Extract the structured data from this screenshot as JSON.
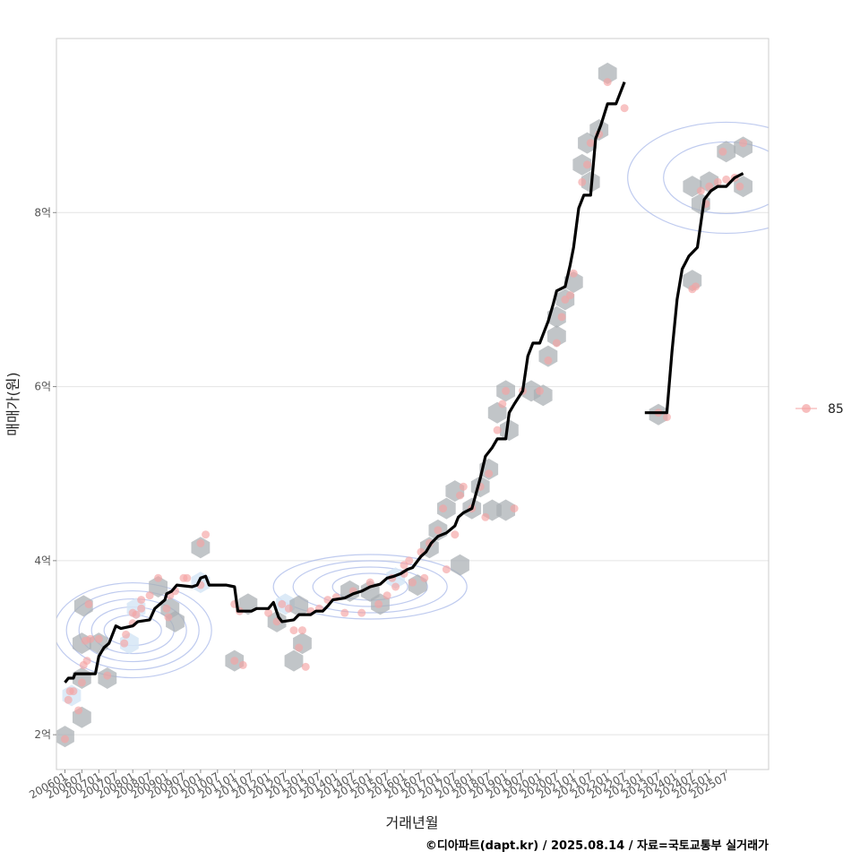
{
  "chart_data": {
    "type": "scatter",
    "xlabel": "거래년월",
    "ylabel": "매매가(원)",
    "caption": "©디아파트(dapt.kr) / 2025.08.14 / 자료=국토교통부 실거래가",
    "x_ticks": [
      "200601",
      "200607",
      "200701",
      "200707",
      "200801",
      "200807",
      "200901",
      "200907",
      "201001",
      "201007",
      "201101",
      "201107",
      "201201",
      "201207",
      "201301",
      "201307",
      "201401",
      "201407",
      "201501",
      "201507",
      "201601",
      "201607",
      "201701",
      "201707",
      "201801",
      "201807",
      "201901",
      "201907",
      "202001",
      "202007",
      "202101",
      "202107",
      "202201",
      "202207",
      "202301",
      "202307",
      "202401",
      "202407",
      "202501",
      "202507"
    ],
    "y_ticks": [
      {
        "value": 2,
        "label": "2억"
      },
      {
        "value": 4,
        "label": "4억"
      },
      {
        "value": 6,
        "label": "6억"
      },
      {
        "value": 8,
        "label": "8억"
      }
    ],
    "xlim": [
      -0.5,
      41.5
    ],
    "ylim": [
      1.6,
      10.0
    ],
    "legend": {
      "position": "right",
      "entries": [
        {
          "label": "85",
          "color": "#f4a3a3"
        }
      ]
    },
    "colors": {
      "trend": "#000000",
      "points": "#f4a3a3",
      "hex_dark": "#a9aeb3",
      "hex_light": "#d6e6f6",
      "contour": "#a9baea",
      "grid": "#e4e4e4",
      "frame": "#cccccc"
    },
    "points": [
      [
        0.0,
        1.95
      ],
      [
        0.2,
        2.4
      ],
      [
        0.3,
        2.5
      ],
      [
        0.5,
        2.5
      ],
      [
        0.8,
        2.28
      ],
      [
        1.0,
        2.6
      ],
      [
        1.1,
        2.8
      ],
      [
        1.3,
        2.85
      ],
      [
        1.2,
        3.08
      ],
      [
        1.5,
        3.1
      ],
      [
        1.4,
        3.5
      ],
      [
        2.0,
        3.1
      ],
      [
        2.5,
        2.68
      ],
      [
        3.5,
        3.05
      ],
      [
        3.6,
        3.15
      ],
      [
        4.0,
        3.28
      ],
      [
        4.0,
        3.4
      ],
      [
        4.2,
        3.38
      ],
      [
        4.5,
        3.45
      ],
      [
        4.5,
        3.55
      ],
      [
        5.0,
        3.6
      ],
      [
        5.5,
        3.8
      ],
      [
        6.0,
        3.45
      ],
      [
        6.1,
        3.35
      ],
      [
        6.2,
        3.6
      ],
      [
        6.5,
        3.65
      ],
      [
        7.0,
        3.8
      ],
      [
        7.2,
        3.8
      ],
      [
        8.0,
        3.72
      ],
      [
        8.0,
        4.2
      ],
      [
        8.3,
        4.3
      ],
      [
        10.0,
        3.5
      ],
      [
        10.3,
        3.42
      ],
      [
        10.0,
        2.85
      ],
      [
        10.5,
        2.8
      ],
      [
        12.0,
        3.4
      ],
      [
        12.5,
        3.3
      ],
      [
        12.8,
        3.5
      ],
      [
        13.2,
        3.45
      ],
      [
        13.5,
        3.2
      ],
      [
        13.8,
        3.0
      ],
      [
        14.0,
        3.2
      ],
      [
        14.2,
        2.78
      ],
      [
        14.5,
        3.42
      ],
      [
        15.0,
        3.45
      ],
      [
        15.5,
        3.55
      ],
      [
        16.0,
        3.58
      ],
      [
        16.5,
        3.4
      ],
      [
        17.0,
        3.65
      ],
      [
        17.5,
        3.4
      ],
      [
        18.0,
        3.75
      ],
      [
        18.5,
        3.5
      ],
      [
        19.0,
        3.6
      ],
      [
        19.3,
        3.8
      ],
      [
        19.5,
        3.7
      ],
      [
        20.0,
        3.85
      ],
      [
        20.0,
        3.95
      ],
      [
        20.3,
        4.0
      ],
      [
        20.5,
        3.75
      ],
      [
        21.0,
        4.1
      ],
      [
        21.2,
        3.8
      ],
      [
        21.5,
        4.2
      ],
      [
        22.0,
        4.35
      ],
      [
        22.3,
        4.6
      ],
      [
        22.5,
        3.9
      ],
      [
        23.0,
        4.3
      ],
      [
        23.3,
        4.75
      ],
      [
        23.5,
        4.85
      ],
      [
        24.0,
        4.6
      ],
      [
        24.5,
        4.85
      ],
      [
        24.8,
        4.5
      ],
      [
        25.0,
        5.0
      ],
      [
        25.5,
        5.5
      ],
      [
        25.8,
        5.8
      ],
      [
        26.0,
        5.95
      ],
      [
        26.5,
        4.6
      ],
      [
        27.0,
        5.95
      ],
      [
        28.0,
        5.95
      ],
      [
        28.5,
        6.3
      ],
      [
        29.0,
        6.5
      ],
      [
        29.3,
        6.8
      ],
      [
        29.5,
        7.0
      ],
      [
        30.0,
        7.3
      ],
      [
        29.8,
        7.05
      ],
      [
        30.5,
        8.35
      ],
      [
        30.8,
        8.55
      ],
      [
        31.0,
        8.8
      ],
      [
        31.5,
        8.9
      ],
      [
        32.0,
        9.5
      ],
      [
        33.0,
        9.2
      ],
      [
        35.0,
        5.7
      ],
      [
        35.5,
        5.65
      ],
      [
        37.0,
        7.12
      ],
      [
        37.2,
        7.15
      ],
      [
        37.5,
        8.25
      ],
      [
        37.8,
        8.1
      ],
      [
        38.0,
        8.3
      ],
      [
        38.5,
        8.35
      ],
      [
        38.8,
        8.7
      ],
      [
        39.0,
        8.38
      ],
      [
        39.5,
        8.4
      ],
      [
        39.8,
        8.3
      ],
      [
        40.0,
        8.8
      ]
    ],
    "hexbins": [
      [
        0.0,
        1.98,
        "d"
      ],
      [
        0.4,
        2.45,
        "l"
      ],
      [
        1.0,
        2.2,
        "d"
      ],
      [
        1.0,
        2.65,
        "d"
      ],
      [
        1.0,
        3.05,
        "d"
      ],
      [
        1.1,
        3.48,
        "d"
      ],
      [
        2.0,
        3.05,
        "d"
      ],
      [
        2.5,
        2.65,
        "d"
      ],
      [
        3.8,
        3.05,
        "l"
      ],
      [
        4.2,
        3.45,
        "l"
      ],
      [
        5.5,
        3.7,
        "d"
      ],
      [
        6.2,
        3.45,
        "d"
      ],
      [
        6.5,
        3.3,
        "d"
      ],
      [
        8.0,
        4.15,
        "d"
      ],
      [
        8.0,
        3.75,
        "l"
      ],
      [
        10.0,
        2.85,
        "d"
      ],
      [
        10.8,
        3.5,
        "d"
      ],
      [
        12.5,
        3.3,
        "d"
      ],
      [
        13.0,
        3.5,
        "l"
      ],
      [
        13.8,
        3.48,
        "d"
      ],
      [
        13.5,
        2.85,
        "d"
      ],
      [
        14.0,
        3.05,
        "d"
      ],
      [
        16.8,
        3.65,
        "d"
      ],
      [
        18.0,
        3.65,
        "d"
      ],
      [
        18.6,
        3.5,
        "d"
      ],
      [
        19.5,
        3.8,
        "l"
      ],
      [
        20.8,
        3.72,
        "d"
      ],
      [
        21.5,
        4.15,
        "d"
      ],
      [
        22.0,
        4.35,
        "d"
      ],
      [
        22.5,
        4.6,
        "d"
      ],
      [
        23.0,
        4.8,
        "d"
      ],
      [
        23.3,
        3.95,
        "d"
      ],
      [
        24.0,
        4.6,
        "d"
      ],
      [
        24.5,
        4.85,
        "d"
      ],
      [
        25.0,
        5.05,
        "d"
      ],
      [
        25.2,
        4.58,
        "d"
      ],
      [
        26.0,
        4.58,
        "d"
      ],
      [
        25.5,
        5.7,
        "d"
      ],
      [
        26.0,
        5.95,
        "d"
      ],
      [
        26.2,
        5.5,
        "d"
      ],
      [
        27.5,
        5.95,
        "d"
      ],
      [
        28.2,
        5.9,
        "d"
      ],
      [
        28.5,
        6.35,
        "d"
      ],
      [
        29.0,
        6.58,
        "d"
      ],
      [
        29.0,
        6.8,
        "d"
      ],
      [
        29.5,
        7.0,
        "d"
      ],
      [
        30.0,
        7.2,
        "d"
      ],
      [
        30.5,
        8.55,
        "d"
      ],
      [
        31.0,
        8.35,
        "d"
      ],
      [
        30.8,
        8.8,
        "d"
      ],
      [
        31.5,
        8.95,
        "d"
      ],
      [
        32.0,
        9.6,
        "d"
      ],
      [
        35.0,
        5.68,
        "d"
      ],
      [
        37.0,
        7.22,
        "d"
      ],
      [
        37.0,
        8.3,
        "d"
      ],
      [
        37.5,
        8.1,
        "d"
      ],
      [
        38.0,
        8.35,
        "d"
      ],
      [
        39.0,
        8.7,
        "d"
      ],
      [
        40.0,
        8.75,
        "d"
      ],
      [
        40.0,
        8.3,
        "d"
      ]
    ],
    "trend_segments": [
      [
        [
          0.0,
          2.6
        ],
        [
          0.2,
          2.65
        ],
        [
          0.5,
          2.65
        ],
        [
          0.6,
          2.7
        ],
        [
          1.5,
          2.7
        ],
        [
          1.8,
          2.7
        ],
        [
          2.0,
          2.9
        ],
        [
          2.3,
          3.0
        ],
        [
          2.6,
          3.05
        ],
        [
          2.8,
          3.15
        ],
        [
          3.0,
          3.25
        ],
        [
          3.3,
          3.22
        ],
        [
          4.0,
          3.25
        ],
        [
          4.3,
          3.3
        ],
        [
          5.0,
          3.32
        ],
        [
          5.3,
          3.45
        ],
        [
          5.6,
          3.5
        ],
        [
          5.9,
          3.55
        ],
        [
          6.0,
          3.62
        ],
        [
          6.3,
          3.65
        ],
        [
          6.6,
          3.72
        ],
        [
          7.5,
          3.7
        ],
        [
          7.8,
          3.72
        ],
        [
          8.0,
          3.8
        ],
        [
          8.3,
          3.82
        ],
        [
          8.5,
          3.72
        ],
        [
          9.0,
          3.72
        ],
        [
          9.5,
          3.72
        ],
        [
          10.0,
          3.7
        ],
        [
          10.2,
          3.42
        ],
        [
          11.0,
          3.42
        ],
        [
          11.3,
          3.45
        ],
        [
          12.0,
          3.45
        ],
        [
          12.3,
          3.52
        ],
        [
          12.6,
          3.35
        ],
        [
          12.8,
          3.3
        ],
        [
          13.5,
          3.32
        ],
        [
          13.8,
          3.38
        ],
        [
          14.5,
          3.38
        ],
        [
          14.8,
          3.42
        ],
        [
          15.2,
          3.42
        ],
        [
          15.5,
          3.48
        ],
        [
          15.8,
          3.55
        ],
        [
          16.5,
          3.57
        ],
        [
          17.0,
          3.62
        ],
        [
          17.5,
          3.65
        ],
        [
          18.0,
          3.7
        ],
        [
          18.6,
          3.73
        ],
        [
          19.0,
          3.8
        ],
        [
          19.4,
          3.82
        ],
        [
          19.8,
          3.85
        ],
        [
          20.2,
          3.9
        ],
        [
          20.5,
          3.92
        ],
        [
          21.0,
          4.05
        ],
        [
          21.3,
          4.1
        ],
        [
          21.6,
          4.2
        ],
        [
          22.0,
          4.28
        ],
        [
          22.5,
          4.32
        ],
        [
          23.0,
          4.4
        ],
        [
          23.2,
          4.5
        ],
        [
          23.5,
          4.55
        ],
        [
          24.0,
          4.6
        ],
        [
          24.5,
          4.95
        ],
        [
          24.8,
          5.2
        ],
        [
          25.2,
          5.3
        ],
        [
          25.5,
          5.4
        ],
        [
          26.0,
          5.4
        ],
        [
          26.2,
          5.7
        ],
        [
          26.5,
          5.8
        ],
        [
          27.0,
          5.95
        ],
        [
          27.3,
          6.35
        ],
        [
          27.6,
          6.5
        ],
        [
          28.0,
          6.5
        ],
        [
          28.5,
          6.75
        ],
        [
          28.8,
          6.95
        ],
        [
          29.0,
          7.1
        ],
        [
          29.5,
          7.15
        ],
        [
          29.8,
          7.4
        ],
        [
          30.0,
          7.6
        ],
        [
          30.3,
          8.05
        ],
        [
          30.6,
          8.2
        ],
        [
          31.0,
          8.2
        ],
        [
          31.3,
          8.85
        ],
        [
          31.6,
          9.0
        ],
        [
          32.0,
          9.25
        ],
        [
          32.5,
          9.25
        ],
        [
          33.0,
          9.5
        ]
      ],
      [
        [
          34.2,
          5.7
        ],
        [
          35.5,
          5.7
        ],
        [
          35.8,
          6.4
        ],
        [
          36.1,
          7.0
        ],
        [
          36.4,
          7.35
        ],
        [
          36.8,
          7.5
        ],
        [
          37.3,
          7.6
        ],
        [
          37.7,
          8.15
        ],
        [
          38.1,
          8.25
        ],
        [
          38.5,
          8.3
        ],
        [
          39.0,
          8.3
        ],
        [
          39.5,
          8.4
        ],
        [
          40.0,
          8.45
        ]
      ]
    ],
    "contour_centers": [
      {
        "x": 4.0,
        "y": 3.2
      },
      {
        "x": 18.0,
        "y": 3.7
      },
      {
        "x": 39.0,
        "y": 8.4
      }
    ]
  }
}
